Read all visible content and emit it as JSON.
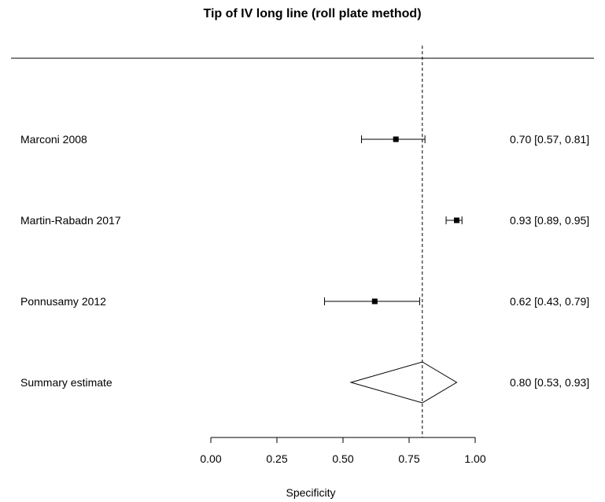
{
  "chart_data": {
    "type": "forest",
    "title": "Tip of IV long line (roll plate method)",
    "xlabel": "Specificity",
    "xlim": [
      0,
      1
    ],
    "x_ticks": [
      0,
      0.25,
      0.5,
      0.75,
      1
    ],
    "x_tick_labels": [
      "0.00",
      "0.25",
      "0.50",
      "0.75",
      "1.00"
    ],
    "reference_line": 0.8,
    "studies": [
      {
        "name": "Marconi 2008",
        "estimate": 0.7,
        "lower": 0.57,
        "upper": 0.81,
        "label": "0.70 [0.57, 0.81]"
      },
      {
        "name": "Martin-Rabadn 2017",
        "estimate": 0.93,
        "lower": 0.89,
        "upper": 0.95,
        "label": "0.93 [0.89, 0.95]"
      },
      {
        "name": "Ponnusamy 2012",
        "estimate": 0.62,
        "lower": 0.43,
        "upper": 0.79,
        "label": "0.62 [0.43, 0.79]"
      }
    ],
    "summary": {
      "name": "Summary estimate",
      "estimate": 0.8,
      "lower": 0.53,
      "upper": 0.93,
      "label": "0.80 [0.53, 0.93]"
    }
  }
}
